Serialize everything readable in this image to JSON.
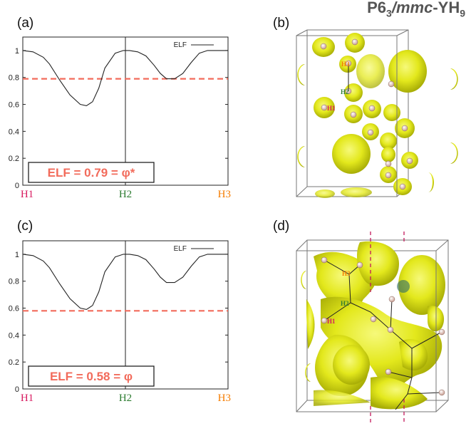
{
  "page_title": {
    "prefix": "P6",
    "sub": "3",
    "italic_part": "/mmc",
    "suffix": "-YH",
    "sub2": "9"
  },
  "colors": {
    "h1": "#d81b60",
    "h2": "#2e7d32",
    "h3": "#f57c00",
    "dash": "#f26b5b",
    "elf_text": "#f26b5b",
    "isosurface": "#e6ec1e"
  },
  "panels": [
    {
      "label": "(a)"
    },
    {
      "label": "(b)"
    },
    {
      "label": "(c)"
    },
    {
      "label": "(d)"
    }
  ],
  "chart_data": [
    {
      "type": "line",
      "panel": "(a)",
      "x_labels": [
        "H1",
        "H2",
        "H3"
      ],
      "ylim": [
        0,
        1.1
      ],
      "yticks": [
        "0",
        "0.2",
        "0.4",
        "0.6",
        "0.8",
        "1"
      ],
      "legend": "ELF",
      "series": [
        {
          "name": "ELF",
          "x": [
            0,
            0.05,
            0.1,
            0.13,
            0.18,
            0.23,
            0.28,
            0.31,
            0.34,
            0.37,
            0.4,
            0.45,
            0.49,
            0.52,
            0.56,
            0.6,
            0.64,
            0.67,
            0.7,
            0.74,
            0.78,
            0.82,
            0.86,
            0.9,
            0.95,
            1
          ],
          "y": [
            1.0,
            0.99,
            0.95,
            0.9,
            0.78,
            0.67,
            0.6,
            0.59,
            0.62,
            0.72,
            0.87,
            0.98,
            1.0,
            1.0,
            0.99,
            0.96,
            0.89,
            0.83,
            0.79,
            0.79,
            0.83,
            0.91,
            0.98,
            1.0,
            1.0,
            1.0
          ]
        }
      ],
      "threshold": 0.79,
      "annotation": "ELF = 0.79 = φ*"
    },
    {
      "type": "line",
      "panel": "(c)",
      "x_labels": [
        "H1",
        "H2",
        "H3"
      ],
      "ylim": [
        0,
        1.1
      ],
      "yticks": [
        "0",
        "0.2",
        "0.4",
        "0.6",
        "0.8",
        "1"
      ],
      "legend": "ELF",
      "series": [
        {
          "name": "ELF",
          "x": [
            0,
            0.05,
            0.1,
            0.13,
            0.18,
            0.23,
            0.28,
            0.31,
            0.34,
            0.37,
            0.4,
            0.45,
            0.49,
            0.52,
            0.56,
            0.6,
            0.64,
            0.67,
            0.7,
            0.74,
            0.78,
            0.82,
            0.86,
            0.9,
            0.95,
            1
          ],
          "y": [
            1.0,
            0.99,
            0.95,
            0.9,
            0.78,
            0.67,
            0.6,
            0.59,
            0.62,
            0.72,
            0.87,
            0.98,
            1.0,
            1.0,
            0.99,
            0.96,
            0.89,
            0.83,
            0.79,
            0.79,
            0.83,
            0.91,
            0.98,
            1.0,
            1.0,
            1.0
          ]
        }
      ],
      "threshold": 0.58,
      "annotation": "ELF = 0.58 = φ"
    }
  ],
  "structures": [
    {
      "panel": "(b)",
      "atom_labels": [
        "H3",
        "H2",
        "H1"
      ]
    },
    {
      "panel": "(d)",
      "atom_labels": [
        "H3",
        "H2",
        "H1"
      ]
    }
  ]
}
